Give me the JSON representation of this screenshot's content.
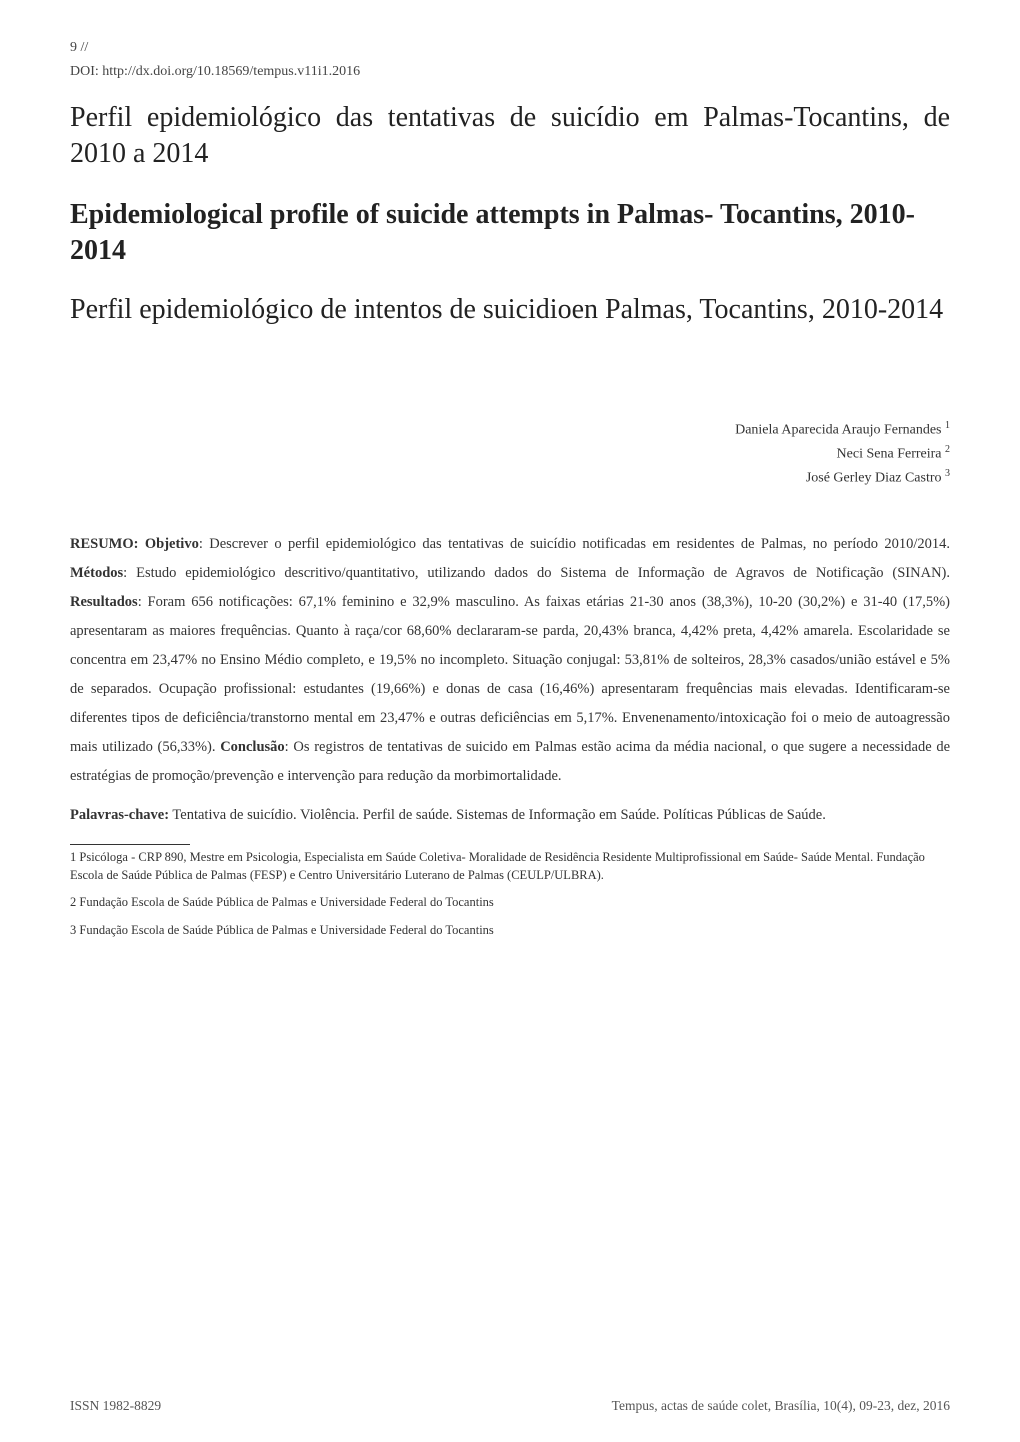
{
  "page_number": "9 //",
  "doi_label": "DOI:  ",
  "doi_url": "http://dx.doi.org/10.18569/tempus.v11i1.2016",
  "title_pt": "Perfil epidemiológico das tentativas de suicídio em Palmas-Tocantins, de 2010 a 2014",
  "title_en": "Epidemiological profile of suicide attempts in Palmas- Tocantins, 2010-2014",
  "title_es": "Perfil epidemiológico de intentos de suicidioen Palmas, Tocantins, 2010-2014",
  "authors": [
    {
      "name": "Daniela Aparecida Araujo Fernandes",
      "sup": "1"
    },
    {
      "name": "Neci Sena Ferreira",
      "sup": "2"
    },
    {
      "name": "José Gerley Diaz Castro",
      "sup": "3"
    }
  ],
  "abstract": {
    "label_resumo": "RESUMO: Objetivo",
    "text1": ": Descrever o perfil epidemiológico das tentativas de suicídio notificadas em residentes de Palmas, no período 2010/2014. ",
    "label_metodos": "Métodos",
    "text2": ": Estudo epidemiológico descritivo/quantitativo, utilizando dados do Sistema de Informação de Agravos de Notificação (SINAN). ",
    "label_resultados": "Resultados",
    "text3": ": Foram 656 notificações: 67,1% feminino e 32,9% masculino. As faixas etárias 21-30 anos (38,3%), 10-20 (30,2%) e 31-40 (17,5%) apresentaram as maiores frequências. Quanto à raça/cor 68,60% declararam-se parda, 20,43% branca, 4,42% preta, 4,42% amarela. Escolaridade se concentra em 23,47% no Ensino Médio completo, e 19,5% no incompleto. Situação conjugal: 53,81% de solteiros, 28,3% casados/união estável e 5% de separados. Ocupação profissional: estudantes (19,66%) e donas de casa (16,46%) apresentaram frequências mais elevadas. Identificaram-se diferentes tipos de deficiência/transtorno mental em 23,47% e outras deficiências em 5,17%. Envenenamento/intoxicação foi o meio de autoagressão mais utilizado (56,33%). ",
    "label_conclusao": "Conclusão",
    "text4": ": Os registros de tentativas de suicido em Palmas estão acima da média nacional, o que sugere a necessidade de estratégias de promoção/prevenção e intervenção para redução da morbimortalidade."
  },
  "keywords": {
    "label": "Palavras-chave:",
    "text": " Tentativa de suicídio. Violência. Perfil de saúde. Sistemas de Informação em Saúde. Políticas Públicas de Saúde."
  },
  "footnotes": [
    "1 Psicóloga - CRP 890,  Mestre em Psicologia, Especialista em Saúde Coletiva- Moralidade de Residência Residente Multiprofissional em Saúde- Saúde Mental. Fundação Escola de Saúde Pública de Palmas (FESP) e Centro Universitário Luterano de Palmas (CEULP/ULBRA).",
    "2 Fundação Escola de Saúde Pública de Palmas e Universidade Federal do Tocantins",
    "3 Fundação Escola de Saúde Pública de Palmas e Universidade Federal do Tocantins"
  ],
  "footer": {
    "issn": "ISSN 1982-8829",
    "citation": "Tempus, actas de saúde colet, Brasília, 10(4),  09-23, dez, 2016"
  }
}
